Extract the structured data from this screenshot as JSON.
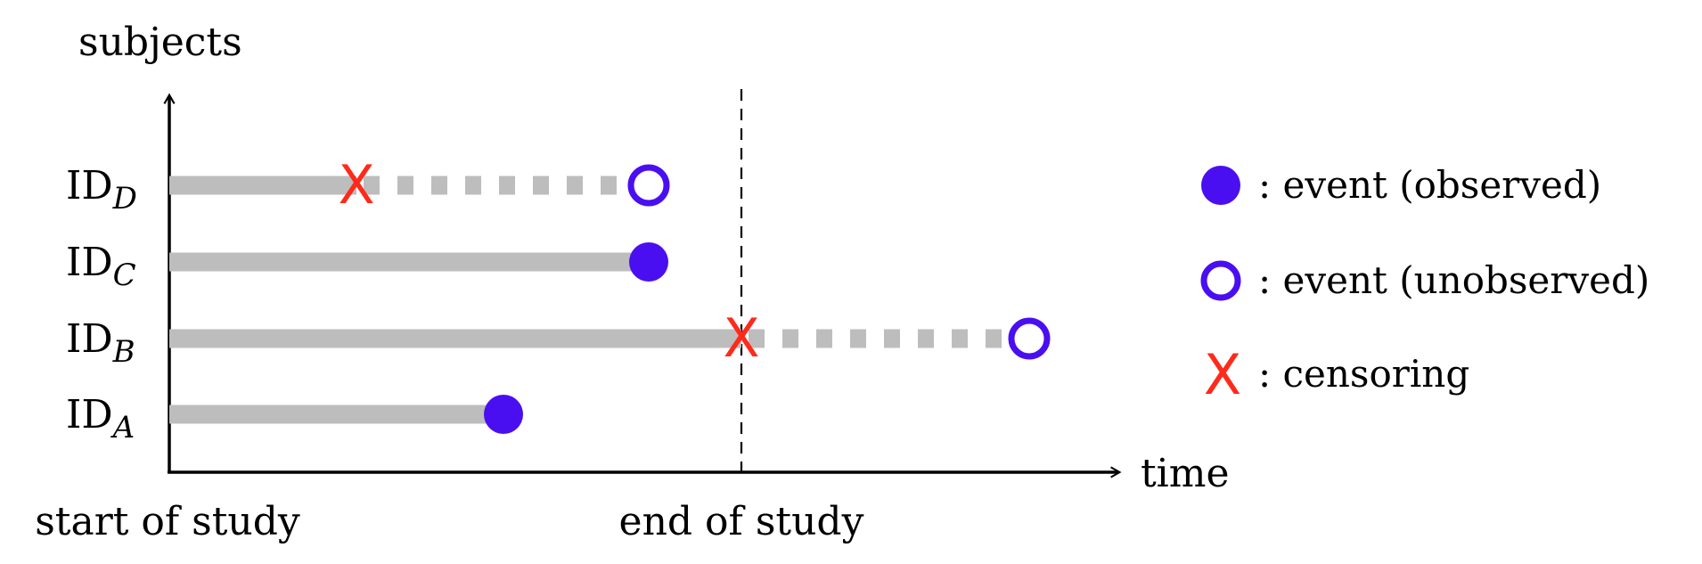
{
  "axes": {
    "y_label": "subjects",
    "x_label": "time",
    "x_start_label": "start of study",
    "x_end_label": "end of study"
  },
  "subjects": [
    {
      "prefix": "ID",
      "sub": "D",
      "end_kind": "unobserved",
      "censored": true,
      "observed_until": "censor"
    },
    {
      "prefix": "ID",
      "sub": "C",
      "end_kind": "observed",
      "censored": false,
      "observed_until": "event"
    },
    {
      "prefix": "ID",
      "sub": "B",
      "end_kind": "unobserved",
      "censored": true,
      "observed_until": "censor"
    },
    {
      "prefix": "ID",
      "sub": "A",
      "end_kind": "observed",
      "censored": false,
      "observed_until": "event"
    }
  ],
  "censor_mark": "X",
  "legend": [
    {
      "kind": "observed",
      "label": ": event (observed)"
    },
    {
      "kind": "unobserved",
      "label": ": event (unobserved)"
    },
    {
      "kind": "censoring",
      "label": ": censoring"
    }
  ],
  "colors": {
    "event": "#4a0ff0",
    "censor": "#ff2a1a",
    "bar": "#bdbdbd",
    "axis": "#000000"
  }
}
